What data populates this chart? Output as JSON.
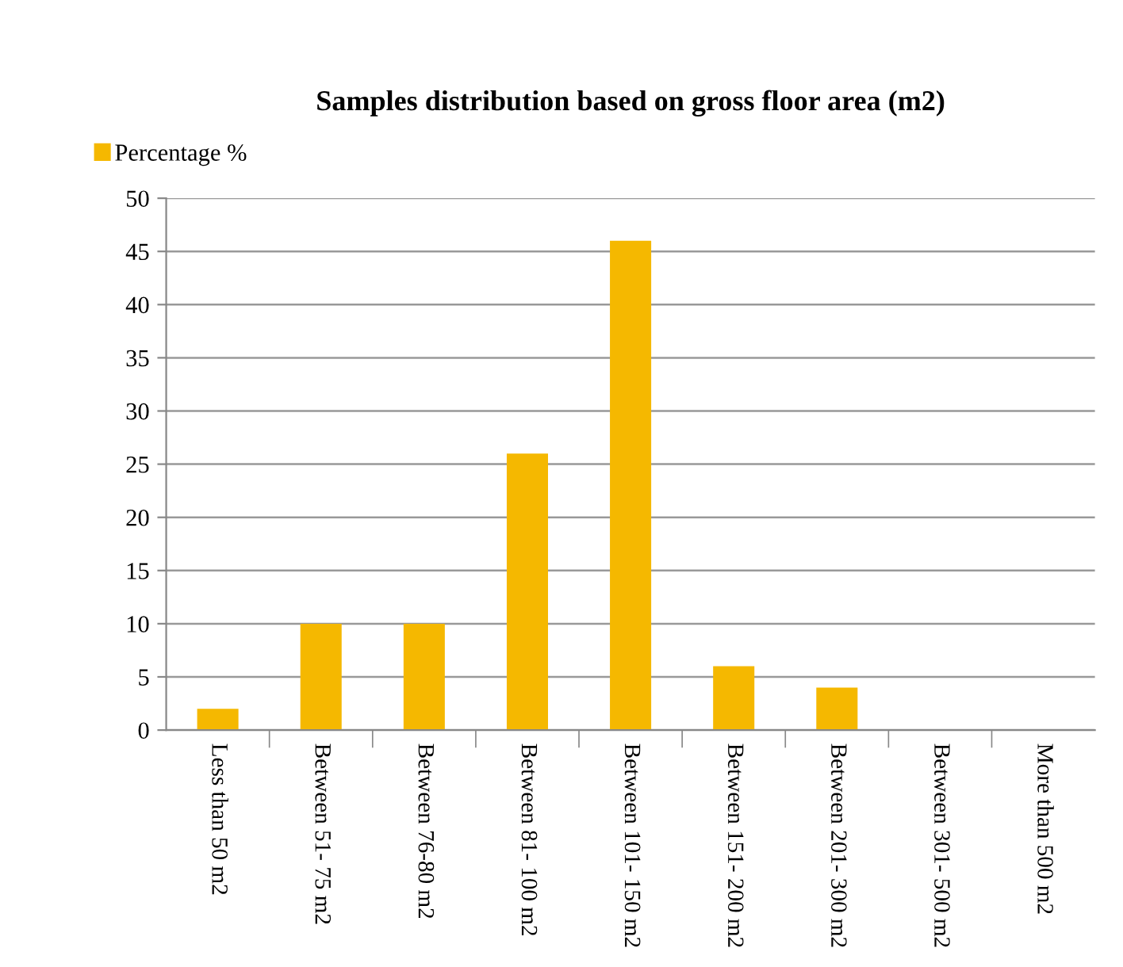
{
  "chart_data": {
    "type": "bar",
    "title": "Samples distribution based on gross floor area (m2)",
    "categories": [
      "Less than 50 m2",
      "Between 51- 75 m2",
      "Between 76-80 m2",
      "Between 81- 100 m2",
      "Between 101- 150 m2",
      "Between 151- 200 m2",
      "Between 201- 300 m2",
      "Between 301- 500 m2",
      "More than 500 m2"
    ],
    "series": [
      {
        "name": "Percentage %",
        "color": "#f5b800",
        "values": [
          2,
          10,
          10,
          26,
          46,
          6,
          4,
          0,
          0
        ]
      }
    ],
    "ylim": [
      0,
      50
    ],
    "yticks": [
      0,
      5,
      10,
      15,
      20,
      25,
      30,
      35,
      40,
      45,
      50
    ],
    "grid": "y",
    "legend": "top left"
  }
}
